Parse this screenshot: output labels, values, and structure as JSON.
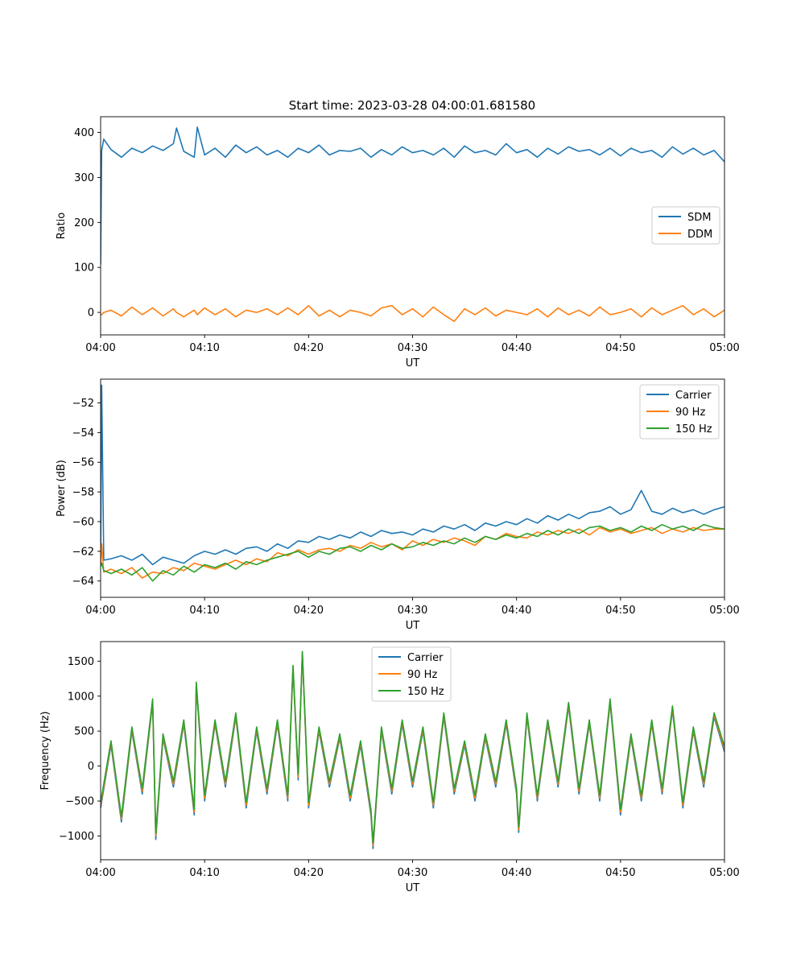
{
  "figure_title": "Start time: 2023-03-28 04:00:01.681580",
  "colors": {
    "blue": "#1f77b4",
    "orange": "#ff7f0e",
    "green": "#2ca02c"
  },
  "chart_data": [
    {
      "type": "line",
      "title": "Start time: 2023-03-28 04:00:01.681580",
      "xlabel": "UT",
      "ylabel": "Ratio",
      "x_unit": "minutes after 04:00",
      "xlim": [
        0,
        60
      ],
      "ylim": [
        -50,
        435
      ],
      "xticks": [
        0,
        10,
        20,
        30,
        40,
        50,
        60
      ],
      "xtick_labels": [
        "04:00",
        "04:10",
        "04:20",
        "04:30",
        "04:40",
        "04:50",
        "05:00"
      ],
      "yticks": [
        0,
        100,
        200,
        300,
        400
      ],
      "ytick_labels": [
        "0",
        "100",
        "200",
        "300",
        "400"
      ],
      "legend_position": "right",
      "grid": false,
      "x": [
        0,
        0.1,
        0.3,
        1,
        2,
        3,
        4,
        5,
        6,
        7,
        7.3,
        8,
        9,
        9.3,
        10,
        11,
        12,
        13,
        14,
        15,
        16,
        17,
        18,
        19,
        20,
        21,
        22,
        23,
        24,
        25,
        26,
        27,
        28,
        29,
        30,
        31,
        32,
        33,
        34,
        35,
        36,
        37,
        38,
        39,
        40,
        41,
        42,
        43,
        44,
        45,
        46,
        47,
        48,
        49,
        50,
        51,
        52,
        53,
        54,
        55,
        56,
        57,
        58,
        59,
        60
      ],
      "series": [
        {
          "name": "SDM",
          "color": "#1f77b4",
          "values": [
            107,
            360,
            385,
            362,
            345,
            365,
            355,
            370,
            360,
            375,
            410,
            358,
            345,
            412,
            350,
            365,
            345,
            372,
            355,
            368,
            350,
            360,
            345,
            365,
            355,
            372,
            350,
            360,
            358,
            365,
            345,
            362,
            350,
            368,
            355,
            360,
            350,
            365,
            345,
            370,
            355,
            360,
            350,
            375,
            355,
            362,
            345,
            365,
            352,
            368,
            358,
            362,
            350,
            365,
            348,
            365,
            355,
            360,
            345,
            368,
            352,
            365,
            350,
            360,
            335
          ]
        },
        {
          "name": "DDM",
          "color": "#ff7f0e",
          "values": [
            -5,
            -5,
            0,
            5,
            -8,
            12,
            -5,
            10,
            -8,
            8,
            0,
            -10,
            5,
            -5,
            10,
            -5,
            8,
            -10,
            5,
            0,
            8,
            -5,
            10,
            -5,
            15,
            -8,
            5,
            -10,
            5,
            0,
            -8,
            10,
            15,
            -5,
            8,
            -10,
            12,
            -5,
            -20,
            8,
            -5,
            10,
            -8,
            5,
            0,
            -5,
            8,
            -10,
            10,
            -5,
            5,
            -8,
            12,
            -5,
            0,
            8,
            -10,
            10,
            -5,
            5,
            15,
            -5,
            8,
            -10,
            5
          ]
        }
      ]
    },
    {
      "type": "line",
      "title": "",
      "xlabel": "UT",
      "ylabel": "Power (dB)",
      "x_unit": "minutes after 04:00",
      "xlim": [
        0,
        60
      ],
      "ylim": [
        -65.1,
        -50.4
      ],
      "xticks": [
        0,
        10,
        20,
        30,
        40,
        50,
        60
      ],
      "xtick_labels": [
        "04:00",
        "04:10",
        "04:20",
        "04:30",
        "04:40",
        "04:50",
        "05:00"
      ],
      "yticks": [
        -64,
        -62,
        -60,
        -58,
        -56,
        -54,
        -52
      ],
      "ytick_labels": [
        "−64",
        "−62",
        "−60",
        "−58",
        "−56",
        "−54",
        "−52"
      ],
      "legend_position": "top-right",
      "grid": false,
      "x": [
        0,
        0.1,
        0.3,
        1,
        2,
        3,
        4,
        5,
        6,
        7,
        8,
        9,
        10,
        11,
        12,
        13,
        14,
        15,
        16,
        17,
        18,
        19,
        20,
        21,
        22,
        23,
        24,
        25,
        26,
        27,
        28,
        29,
        30,
        31,
        32,
        33,
        34,
        35,
        36,
        37,
        38,
        39,
        40,
        41,
        42,
        43,
        44,
        45,
        46,
        47,
        48,
        49,
        50,
        51,
        52,
        53,
        54,
        55,
        56,
        57,
        58,
        59,
        60
      ],
      "series": [
        {
          "name": "Carrier",
          "color": "#1f77b4",
          "values": [
            -62.5,
            -50.8,
            -62.6,
            -62.5,
            -62.3,
            -62.6,
            -62.2,
            -62.9,
            -62.4,
            -62.6,
            -62.8,
            -62.3,
            -62.0,
            -62.2,
            -61.9,
            -62.2,
            -61.8,
            -61.7,
            -62.0,
            -61.5,
            -61.8,
            -61.3,
            -61.4,
            -61.0,
            -61.2,
            -60.9,
            -61.1,
            -60.7,
            -61.0,
            -60.6,
            -60.8,
            -60.7,
            -60.9,
            -60.5,
            -60.7,
            -60.3,
            -60.5,
            -60.2,
            -60.6,
            -60.1,
            -60.3,
            -60.0,
            -60.2,
            -59.8,
            -60.1,
            -59.6,
            -59.9,
            -59.5,
            -59.8,
            -59.4,
            -59.3,
            -59.0,
            -59.5,
            -59.2,
            -57.9,
            -59.3,
            -59.5,
            -59.1,
            -59.4,
            -59.2,
            -59.5,
            -59.2,
            -59.0
          ]
        },
        {
          "name": "90 Hz",
          "color": "#ff7f0e",
          "values": [
            -63.0,
            -61.5,
            -63.4,
            -63.2,
            -63.5,
            -63.1,
            -63.8,
            -63.4,
            -63.5,
            -63.1,
            -63.3,
            -62.8,
            -63.0,
            -63.2,
            -62.9,
            -62.6,
            -62.9,
            -62.5,
            -62.7,
            -62.1,
            -62.3,
            -61.9,
            -62.2,
            -61.9,
            -61.8,
            -62.0,
            -61.6,
            -61.8,
            -61.4,
            -61.7,
            -61.5,
            -61.9,
            -61.3,
            -61.6,
            -61.2,
            -61.4,
            -61.1,
            -61.3,
            -61.6,
            -61.0,
            -61.2,
            -60.8,
            -61.0,
            -61.1,
            -60.7,
            -60.9,
            -60.6,
            -60.8,
            -60.5,
            -60.9,
            -60.4,
            -60.7,
            -60.5,
            -60.8,
            -60.6,
            -60.4,
            -60.8,
            -60.5,
            -60.7,
            -60.4,
            -60.6,
            -60.5,
            -60.5
          ]
        },
        {
          "name": "150 Hz",
          "color": "#2ca02c",
          "values": [
            -63.0,
            -62.8,
            -63.3,
            -63.5,
            -63.2,
            -63.6,
            -63.1,
            -64.0,
            -63.3,
            -63.6,
            -63.0,
            -63.4,
            -62.9,
            -63.1,
            -62.8,
            -63.2,
            -62.7,
            -62.9,
            -62.6,
            -62.4,
            -62.2,
            -62.0,
            -62.4,
            -62.0,
            -62.2,
            -61.8,
            -61.7,
            -62.0,
            -61.6,
            -61.9,
            -61.5,
            -61.8,
            -61.7,
            -61.4,
            -61.6,
            -61.3,
            -61.5,
            -61.1,
            -61.4,
            -61.0,
            -61.2,
            -60.9,
            -61.1,
            -60.8,
            -61.0,
            -60.6,
            -60.9,
            -60.5,
            -60.8,
            -60.4,
            -60.3,
            -60.6,
            -60.4,
            -60.7,
            -60.3,
            -60.6,
            -60.2,
            -60.5,
            -60.3,
            -60.6,
            -60.2,
            -60.4,
            -60.5
          ]
        }
      ]
    },
    {
      "type": "line",
      "title": "",
      "xlabel": "UT",
      "ylabel": "Frequency (Hz)",
      "x_unit": "minutes after 04:00",
      "xlim": [
        0,
        60
      ],
      "ylim": [
        -1340,
        1780
      ],
      "xticks": [
        0,
        10,
        20,
        30,
        40,
        50,
        60
      ],
      "xtick_labels": [
        "04:00",
        "04:10",
        "04:20",
        "04:30",
        "04:40",
        "04:50",
        "05:00"
      ],
      "yticks": [
        -1000,
        -500,
        0,
        500,
        1000,
        1500
      ],
      "ytick_labels": [
        "−1000",
        "−500",
        "0",
        "500",
        "1000",
        "1500"
      ],
      "legend_position": "upper-center",
      "grid": false,
      "x": [
        0,
        1,
        2,
        3,
        4,
        5,
        5.3,
        6,
        7,
        8,
        9,
        9.2,
        10,
        11,
        12,
        13,
        14,
        15,
        16,
        17,
        18,
        18.5,
        19,
        19.4,
        20,
        21,
        22,
        23,
        24,
        25,
        26,
        26.2,
        27,
        28,
        29,
        30,
        31,
        32,
        33,
        34,
        35,
        36,
        37,
        38,
        39,
        40,
        40.2,
        41,
        42,
        43,
        44,
        45,
        46,
        47,
        48,
        49,
        50,
        51,
        52,
        53,
        54,
        55,
        56,
        57,
        58,
        59,
        60
      ],
      "series": [
        {
          "name": "Carrier",
          "color": "#1f77b4",
          "values": [
            -600,
            300,
            -800,
            500,
            -400,
            900,
            -1050,
            400,
            -300,
            600,
            -700,
            1150,
            -500,
            600,
            -300,
            700,
            -600,
            500,
            -400,
            600,
            -500,
            1400,
            -200,
            1600,
            -600,
            500,
            -300,
            400,
            -500,
            300,
            -700,
            -1180,
            500,
            -400,
            600,
            -300,
            500,
            -600,
            700,
            -400,
            300,
            -500,
            400,
            -300,
            600,
            -400,
            -950,
            700,
            -500,
            600,
            -300,
            850,
            -400,
            600,
            -500,
            900,
            -700,
            400,
            -500,
            600,
            -400,
            800,
            -600,
            500,
            -300,
            700,
            200
          ]
        },
        {
          "name": "90 Hz",
          "color": "#ff7f0e",
          "values": [
            -560,
            330,
            -760,
            530,
            -360,
            930,
            -1000,
            430,
            -260,
            630,
            -660,
            1180,
            -460,
            630,
            -260,
            730,
            -560,
            530,
            -360,
            630,
            -460,
            1420,
            -160,
            1620,
            -560,
            530,
            -260,
            430,
            -460,
            330,
            -660,
            -1140,
            530,
            -360,
            630,
            -260,
            530,
            -560,
            730,
            -360,
            330,
            -460,
            430,
            -260,
            630,
            -360,
            -910,
            730,
            -460,
            630,
            -260,
            880,
            -360,
            630,
            -460,
            930,
            -660,
            430,
            -460,
            630,
            -360,
            830,
            -560,
            530,
            -260,
            730,
            240
          ]
        },
        {
          "name": "150 Hz",
          "color": "#2ca02c",
          "values": [
            -520,
            360,
            -720,
            560,
            -320,
            960,
            -960,
            460,
            -220,
            660,
            -620,
            1200,
            -420,
            660,
            -220,
            760,
            -520,
            560,
            -320,
            660,
            -420,
            1440,
            -120,
            1640,
            -520,
            560,
            -220,
            460,
            -420,
            360,
            -620,
            -1100,
            560,
            -320,
            660,
            -220,
            560,
            -520,
            760,
            -320,
            360,
            -420,
            460,
            -220,
            660,
            -320,
            -870,
            760,
            -420,
            660,
            -220,
            910,
            -320,
            660,
            -420,
            960,
            -620,
            460,
            -420,
            660,
            -320,
            860,
            -520,
            560,
            -220,
            760,
            280
          ]
        }
      ]
    }
  ]
}
